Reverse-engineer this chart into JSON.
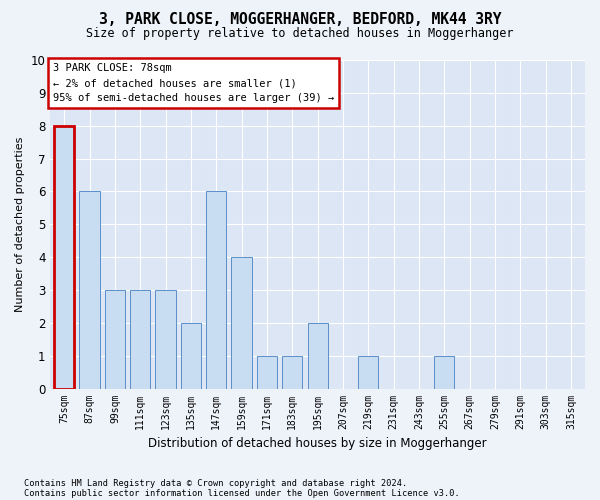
{
  "title": "3, PARK CLOSE, MOGGERHANGER, BEDFORD, MK44 3RY",
  "subtitle": "Size of property relative to detached houses in Moggerhanger",
  "xlabel": "Distribution of detached houses by size in Moggerhanger",
  "ylabel": "Number of detached properties",
  "categories": [
    "75sqm",
    "87sqm",
    "99sqm",
    "111sqm",
    "123sqm",
    "135sqm",
    "147sqm",
    "159sqm",
    "171sqm",
    "183sqm",
    "195sqm",
    "207sqm",
    "219sqm",
    "231sqm",
    "243sqm",
    "255sqm",
    "267sqm",
    "279sqm",
    "291sqm",
    "303sqm",
    "315sqm"
  ],
  "values": [
    8,
    6,
    3,
    3,
    3,
    2,
    6,
    4,
    1,
    1,
    2,
    0,
    1,
    0,
    0,
    1,
    0,
    0,
    0,
    0,
    0
  ],
  "bar_color": "#c9ddf2",
  "bar_edge_color": "#5b8fc9",
  "highlight_edge_color": "#cc0000",
  "annotation_title": "3 PARK CLOSE: 78sqm",
  "annotation_line1": "← 2% of detached houses are smaller (1)",
  "annotation_line2": "95% of semi-detached houses are larger (39) →",
  "annotation_box_color": "#ffffff",
  "annotation_box_edge": "#cc0000",
  "ylim": [
    0,
    10
  ],
  "yticks": [
    0,
    1,
    2,
    3,
    4,
    5,
    6,
    7,
    8,
    9,
    10
  ],
  "footer1": "Contains HM Land Registry data © Crown copyright and database right 2024.",
  "footer2": "Contains public sector information licensed under the Open Government Licence v3.0.",
  "bg_color": "#eef2f9",
  "plot_bg_color": "#dde6f4"
}
